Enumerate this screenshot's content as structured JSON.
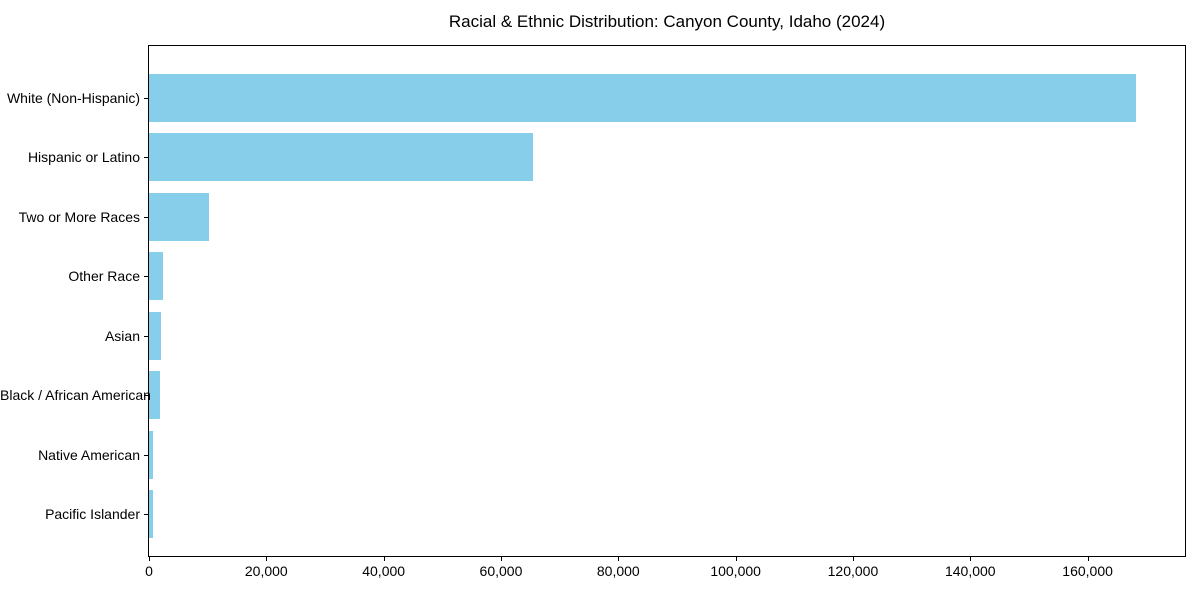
{
  "chart_data": {
    "type": "bar",
    "orientation": "horizontal",
    "title": "Racial & Ethnic Distribution: Canyon County, Idaho (2024)",
    "categories": [
      "White (Non-Hispanic)",
      "Hispanic or Latino",
      "Two or More Races",
      "Other Race",
      "Asian",
      "Black / African American",
      "Native American",
      "Pacific Islander"
    ],
    "values": [
      168200,
      65400,
      10200,
      2350,
      2100,
      1900,
      700,
      650
    ],
    "bar_color": "#87CEEB",
    "xlabel": "",
    "ylabel": "",
    "xlim": [
      0,
      176600
    ],
    "xticks": [
      0,
      20000,
      40000,
      60000,
      80000,
      100000,
      120000,
      140000,
      160000
    ],
    "xtick_labels": [
      "0",
      "20,000",
      "40,000",
      "60,000",
      "80,000",
      "100,000",
      "120,000",
      "140,000",
      "160,000"
    ],
    "grid": false,
    "legend": null,
    "axis_color": "#000000",
    "background_color": "#ffffff"
  }
}
